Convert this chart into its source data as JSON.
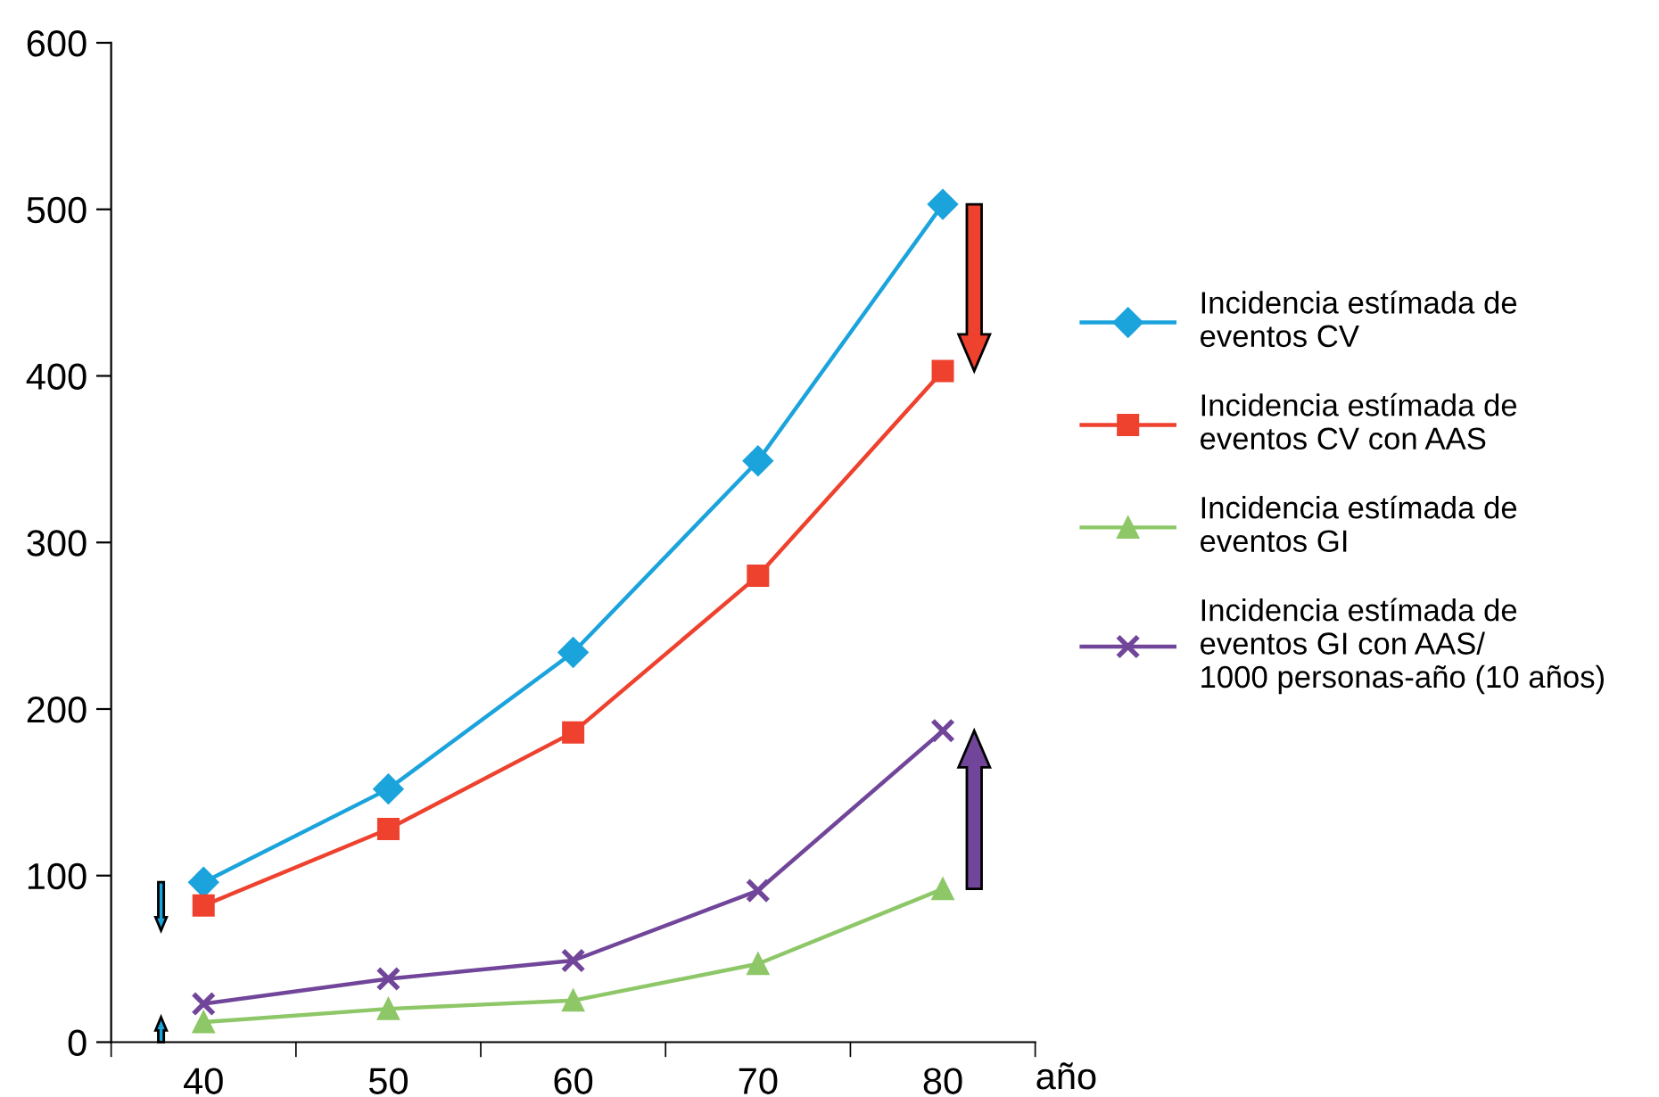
{
  "chart_data": {
    "type": "line",
    "xlabel": "año",
    "categories": [
      "40",
      "50",
      "60",
      "70",
      "80"
    ],
    "series": [
      {
        "name": "Incidencia estímada de\neventos CV",
        "color": "#1ba3dc",
        "marker": "diamond",
        "values": [
          96,
          152,
          234,
          349,
          503
        ]
      },
      {
        "name": "Incidencia estímada de\neventos CV con AAS",
        "color": "#ee412e",
        "marker": "square",
        "values": [
          82,
          128,
          186,
          280,
          403
        ]
      },
      {
        "name": "Incidencia estímada de\neventos GI",
        "color": "#8dc767",
        "marker": "triangle",
        "values": [
          12,
          20,
          25,
          47,
          92
        ]
      },
      {
        "name": "Incidencia estímada de\neventos GI con AAS/\n1000 personas-año (10 años)",
        "color": "#71469a",
        "marker": "cross",
        "values": [
          23,
          38,
          49,
          91,
          187
        ]
      }
    ],
    "ylim": [
      0,
      600
    ],
    "yticks": [
      0,
      100,
      200,
      300,
      400,
      500,
      600
    ],
    "grid": false,
    "legend": "right",
    "line_style": "solid"
  }
}
